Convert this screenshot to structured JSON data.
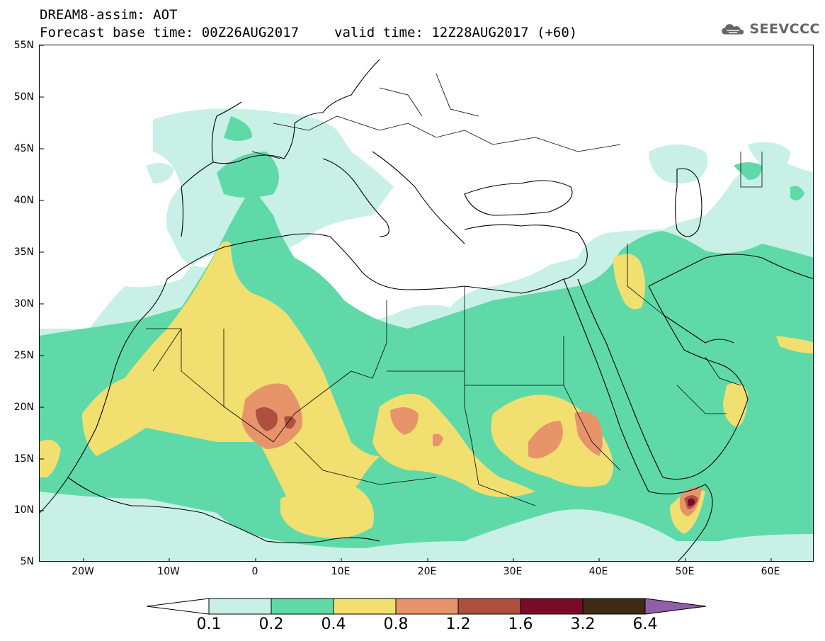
{
  "header": {
    "line1": "DREAM8-assim: AOT",
    "base_time": "Forecast base time: 00Z26AUG2017",
    "valid_time": "valid time: 12Z28AUG2017 (+60)"
  },
  "logo": {
    "text": "SEEVCCC",
    "icon": "cloud-icon"
  },
  "map": {
    "lat_labels": [
      "55N",
      "50N",
      "45N",
      "40N",
      "35N",
      "30N",
      "25N",
      "20N",
      "15N",
      "10N",
      "5N"
    ],
    "lon_labels": [
      "20W",
      "10W",
      "0",
      "10E",
      "20E",
      "30E",
      "40E",
      "50E",
      "60E"
    ],
    "extent": {
      "lon": [
        -25,
        65
      ],
      "lat": [
        5,
        55
      ]
    }
  },
  "legend": {
    "levels": [
      "0.1",
      "0.2",
      "0.4",
      "0.8",
      "1.2",
      "1.6",
      "3.2",
      "6.4"
    ],
    "colors": [
      "#ffffff",
      "#c8f0e6",
      "#5fd9a8",
      "#f1e070",
      "#e8946a",
      "#ad5040",
      "#7a0a2a",
      "#3e2a16",
      "#8f5fa8"
    ]
  }
}
